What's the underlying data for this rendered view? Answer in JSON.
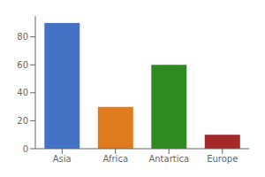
{
  "chart_data": {
    "type": "bar",
    "categories": [
      "Asia",
      "Africa",
      "Antartica",
      "Europe"
    ],
    "values": [
      90,
      30,
      60,
      10
    ],
    "colors": [
      "#4472C4",
      "#E07B20",
      "#2E8B22",
      "#A52A2A"
    ],
    "ylim": [
      0,
      95
    ],
    "yticks": [
      0,
      20,
      40,
      60,
      80
    ],
    "grid": false
  }
}
